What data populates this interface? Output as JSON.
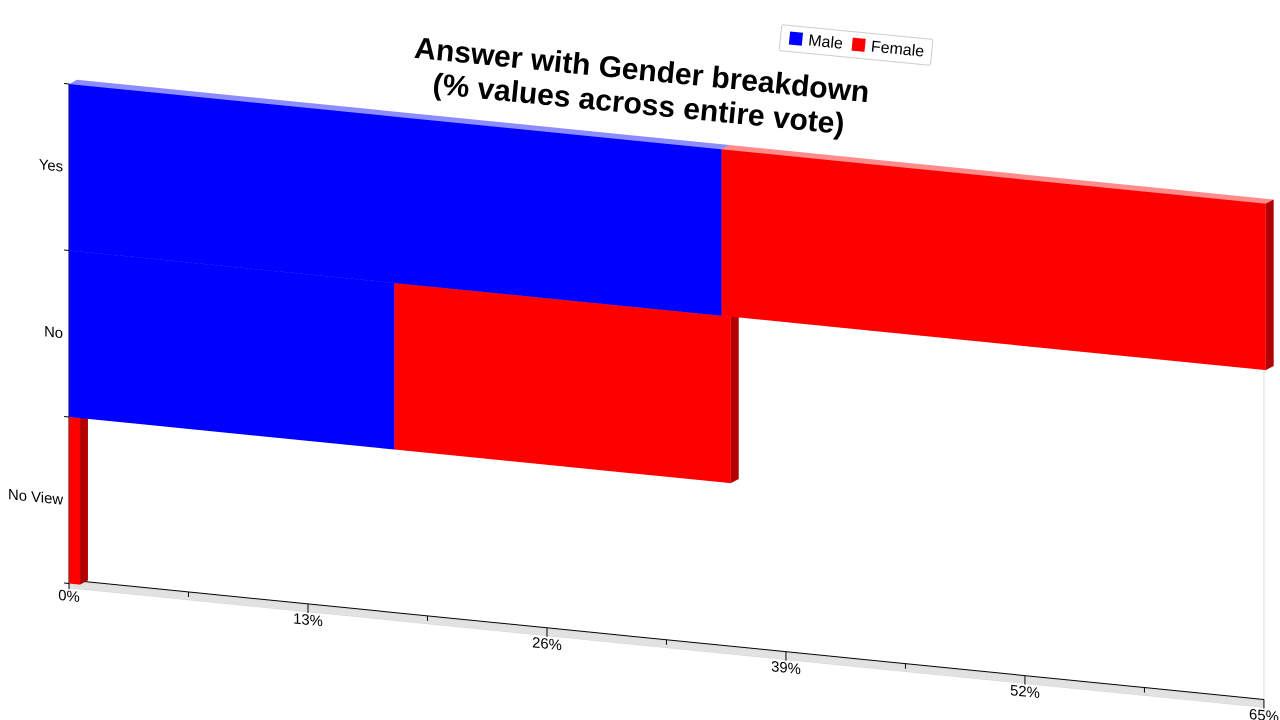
{
  "chart_data": {
    "type": "bar",
    "orientation": "horizontal",
    "stacked": true,
    "title": [
      "Answer with Gender breakdown",
      "(% values across entire vote)"
    ],
    "categories": [
      "Yes",
      "No",
      "No View"
    ],
    "series": [
      {
        "name": "Male",
        "color": "#0000ff",
        "values": [
          35.5,
          17.7,
          0
        ]
      },
      {
        "name": "Female",
        "color": "#ff0000",
        "values": [
          29.6,
          18.3,
          0.6
        ]
      }
    ],
    "xlim": [
      0,
      65
    ],
    "xticks": [
      "0%",
      "13%",
      "26%",
      "39%",
      "52%",
      "65%"
    ],
    "xlabel": "",
    "ylabel": "",
    "grid": false,
    "legend_position": "top-right"
  }
}
